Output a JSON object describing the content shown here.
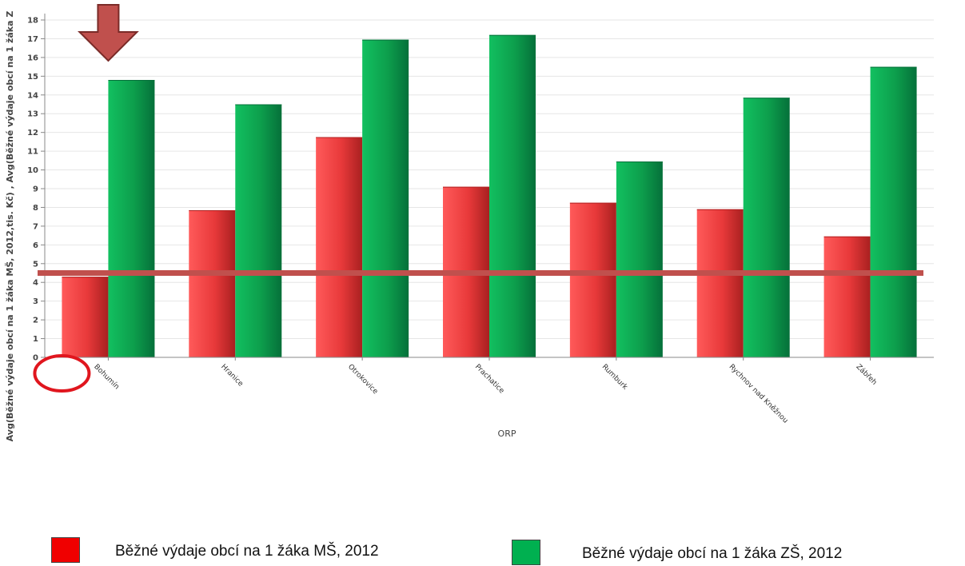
{
  "chart_data": {
    "type": "bar",
    "categories": [
      "Bohumín",
      "Hranice",
      "Otrokovice",
      "Prachatice",
      "Rumburk",
      "Rychnov nad Kněžnou",
      "Zábřeh"
    ],
    "series": [
      {
        "name": "Běžné výdaje obcí na 1 žáka MŠ, 2012",
        "color": "#e8393a",
        "values": [
          4.3,
          7.85,
          11.75,
          9.1,
          8.25,
          7.9,
          6.45
        ]
      },
      {
        "name": "Běžné výdaje obcí na 1 žáka ZŠ, 2012",
        "color": "#0d9e4c",
        "values": [
          14.8,
          13.5,
          16.95,
          17.2,
          10.45,
          13.85,
          15.5
        ]
      }
    ],
    "xlabel": "ORP",
    "ylabel": "Avg(Běžné výdaje obcí na 1 žáka MŠ, 2012,tis. Kč) , Avg(Běžné výdaje obcí na 1 žáka Z",
    "ylim": [
      0,
      18
    ],
    "yticks": [
      0,
      1,
      2,
      3,
      4,
      5,
      6,
      7,
      8,
      9,
      10,
      11,
      12,
      13,
      14,
      15,
      16,
      17,
      18
    ],
    "grid": true,
    "reference_line": {
      "value": 4.5,
      "color": "#c0504d"
    },
    "highlight": {
      "category": "Bohumín",
      "arrow_color": "#c0504d",
      "circle_color": "#e0161e"
    },
    "legend": {
      "placement": "bottom"
    }
  }
}
